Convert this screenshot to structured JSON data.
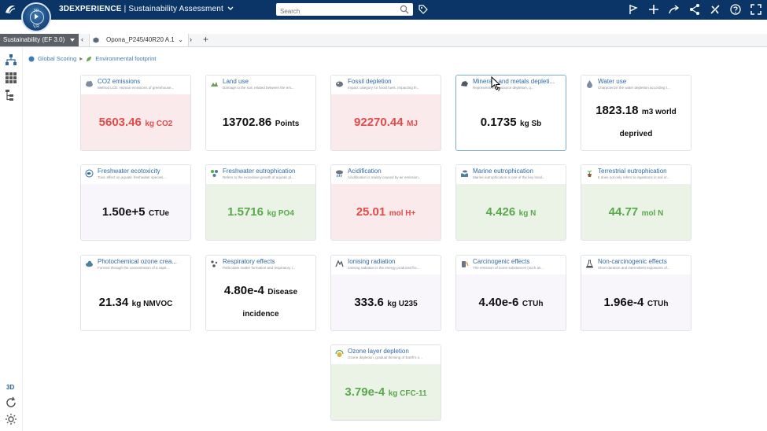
{
  "topbar": {
    "brand_bold": "3DEXPERIENCE",
    "brand_sep": " | ",
    "brand_app": "Sustainability Assessment",
    "compass_top": "3D",
    "compass_bottom": "V,R",
    "search_placeholder": "Search"
  },
  "tabbar": {
    "app_select": "Sustainability (EF 3.0)",
    "tab_label": "Opona_P245/40R20 A.1"
  },
  "lefttool": {
    "label_3d": "3D"
  },
  "breadcrumb": {
    "item1": "Global Scoring",
    "item2": "Environmental footprint"
  },
  "colors": {
    "red": "#e24b48",
    "green": "#5aa84c",
    "accent": "#2f6aa7",
    "topbar": "#0a3566"
  },
  "cards": [
    {
      "title": "CO2 emissions",
      "desc": "Method LCD: Human emissions of greenhouse...",
      "value": "5603.46",
      "unit": "kg CO2"
    },
    {
      "title": "Land use",
      "desc": "Damage to the soil, related between the ers...",
      "value": "13702.86",
      "unit": "Points"
    },
    {
      "title": "Fossil depletion",
      "desc": "Impact category for fossil fuels. Impacting th...",
      "value": "92270.44",
      "unit": "MJ"
    },
    {
      "title": "Minerals and metals depleti...",
      "desc": "Represents the resource depletion, q...",
      "value": "0.1735",
      "unit": "kg Sb"
    },
    {
      "title": "Water use",
      "desc": "Characterize the water depletion according t...",
      "value": "1823.18",
      "unit": "m3 world deprived"
    },
    {
      "title": "Freshwater ecotoxicity",
      "desc": "Toxic effect on aquatic freshwater species...",
      "value": "1.50e+5",
      "unit": "CTUe"
    },
    {
      "title": "Freshwater eutrophication",
      "desc": "Refers to the excessive growth of aquatic pl...",
      "value": "1.5716",
      "unit": "kg PO4"
    },
    {
      "title": "Acidification",
      "desc": "Acidification is mainly caused by air emission...",
      "value": "25.01",
      "unit": "mol H+"
    },
    {
      "title": "Marine eutrophication",
      "desc": "Marine eutrophication is one of the key local...",
      "value": "4.426",
      "unit": "kg N"
    },
    {
      "title": "Terrestrial eutrophication",
      "desc": "It does not only refers to ingestions in soil or...",
      "value": "44.77",
      "unit": "mol N"
    },
    {
      "title": "Photochemical ozone crea...",
      "desc": "Formed through the concentration of a vapit...",
      "value": "21.34",
      "unit": "kg NMVOC"
    },
    {
      "title": "Respiratory effects",
      "desc": "Particulate matter formation and respiratory i...",
      "value": "4.80e-4",
      "unit": "Disease incidence"
    },
    {
      "title": "Ionising radiation",
      "desc": "Ionising radiation is the energy produced fro...",
      "value": "333.6",
      "unit": "kg U235"
    },
    {
      "title": "Carcinogenic effects",
      "desc": "The emission of some substances (such as...",
      "value": "4.40e-6",
      "unit": "CTUh"
    },
    {
      "title": "Non-carcinogenic effects",
      "desc": "Short-duration and intermittent exposures of...",
      "value": "1.96e-4",
      "unit": "CTUh"
    },
    {
      "title": "Ozone layer depletion",
      "desc": "Ozone depletion, gradual thinning of Earth's o...",
      "value": "3.79e-4",
      "unit": "kg CFC-11"
    }
  ]
}
